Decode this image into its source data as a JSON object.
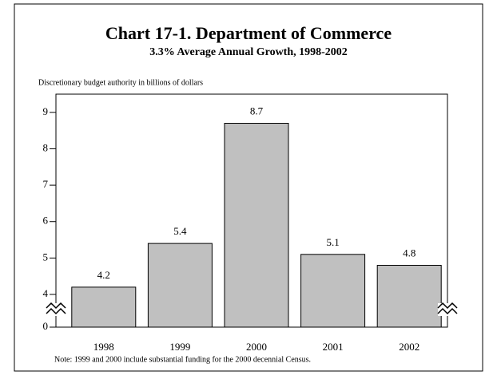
{
  "chart_data": {
    "type": "bar",
    "title": "Chart 17-1.  Department of Commerce",
    "subtitle": "3.3% Average Annual Growth, 1998-2002",
    "y_axis_label": "Discretionary budget authority in billions of dollars",
    "note": "Note:  1999 and 2000 include substantial funding for the 2000 decennial Census.",
    "categories": [
      "1998",
      "1999",
      "2000",
      "2001",
      "2002"
    ],
    "values": [
      4.2,
      5.4,
      8.7,
      5.1,
      4.8
    ],
    "color": "#c0c0c0",
    "ylim": [
      0,
      9.5
    ],
    "yticks": [
      0,
      4,
      5,
      6,
      7,
      8,
      9
    ],
    "axis_break": [
      0,
      4
    ]
  }
}
